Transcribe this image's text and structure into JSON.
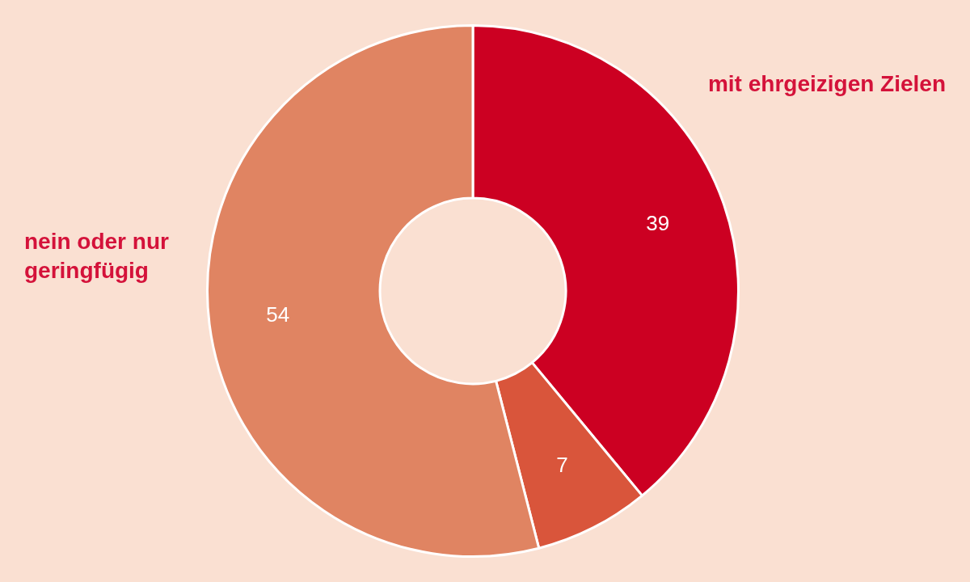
{
  "chart_data": {
    "type": "donut",
    "categories": [
      "mit ehrgeizigen Zielen",
      null,
      "nein oder nur geringfügig"
    ],
    "values": [
      39,
      7,
      54
    ],
    "colors": [
      "#cc0022",
      "#d9553b",
      "#e08462"
    ],
    "data_labels": true,
    "legend": false
  }
}
